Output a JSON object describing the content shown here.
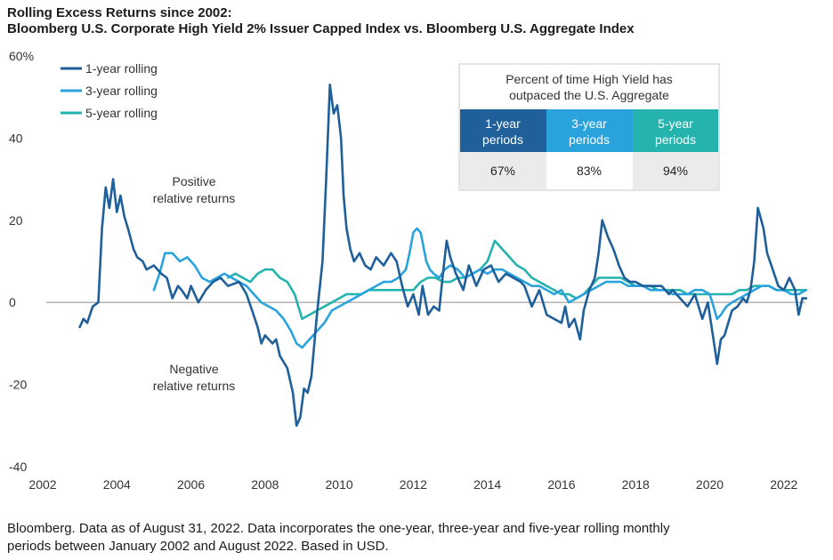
{
  "header": {
    "title_line1": "Rolling Excess Returns since 2002:",
    "title_line2": "Bloomberg U.S. Corporate High Yield 2% Issuer Capped Index vs. Bloomberg U.S. Aggregate Index"
  },
  "footnote": {
    "line1": "Bloomberg. Data as of August 31, 2022. Data incorporates the one-year, three-year and five-year rolling monthly",
    "line2": "periods between January 2002 and August 2022. Based in USD."
  },
  "annotations": {
    "positive_line1": "Positive",
    "positive_line2": "relative returns",
    "negative_line1": "Negative",
    "negative_line2": "relative returns"
  },
  "summary_table": {
    "heading_line1": "Percent of time High Yield has",
    "heading_line2": "outpaced the U.S. Aggregate",
    "columns": [
      {
        "line1": "1-year",
        "line2": "periods",
        "value": "67%",
        "color": "#1f5f9a"
      },
      {
        "line1": "3-year",
        "line2": "periods",
        "value": "83%",
        "color": "#2aa3dd"
      },
      {
        "line1": "5-year",
        "line2": "periods",
        "value": "94%",
        "color": "#24b3ad"
      }
    ]
  },
  "chart_data": {
    "type": "line",
    "title": "",
    "xlabel": "",
    "ylabel": "",
    "xlim": [
      2002,
      2022.75
    ],
    "ylim": [
      -40,
      60
    ],
    "x_ticks": [
      2002,
      2004,
      2006,
      2008,
      2010,
      2012,
      2014,
      2016,
      2018,
      2020,
      2022
    ],
    "y_ticks": [
      -40,
      -20,
      0,
      20,
      40,
      60
    ],
    "y_tick_labels": [
      "-40",
      "-20",
      "0",
      "20",
      "40",
      "60%"
    ],
    "legend_position": "top-left",
    "zero_line": true,
    "grid": false,
    "series": [
      {
        "name": "1-year rolling",
        "color": "#1f5f9a",
        "x": [
          2003.0,
          2003.1,
          2003.2,
          2003.35,
          2003.5,
          2003.6,
          2003.7,
          2003.8,
          2003.9,
          2004.0,
          2004.1,
          2004.2,
          2004.3,
          2004.45,
          2004.55,
          2004.7,
          2004.8,
          2005.0,
          2005.2,
          2005.35,
          2005.5,
          2005.65,
          2005.75,
          2005.9,
          2006.0,
          2006.2,
          2006.4,
          2006.6,
          2006.8,
          2007.0,
          2007.3,
          2007.5,
          2007.65,
          2007.8,
          2007.9,
          2008.0,
          2008.2,
          2008.3,
          2008.4,
          2008.6,
          2008.75,
          2008.85,
          2008.95,
          2009.05,
          2009.15,
          2009.25,
          2009.4,
          2009.55,
          2009.65,
          2009.75,
          2009.85,
          2009.95,
          2010.05,
          2010.12,
          2010.2,
          2010.3,
          2010.4,
          2010.55,
          2010.7,
          2010.85,
          2011.0,
          2011.2,
          2011.4,
          2011.55,
          2011.7,
          2011.85,
          2012.0,
          2012.15,
          2012.25,
          2012.4,
          2012.55,
          2012.7,
          2012.8,
          2012.9,
          2013.0,
          2013.15,
          2013.35,
          2013.5,
          2013.7,
          2013.9,
          2014.1,
          2014.3,
          2014.5,
          2014.7,
          2014.9,
          2015.0,
          2015.2,
          2015.4,
          2015.6,
          2015.8,
          2016.0,
          2016.1,
          2016.2,
          2016.35,
          2016.5,
          2016.6,
          2016.75,
          2016.9,
          2017.0,
          2017.1,
          2017.25,
          2017.4,
          2017.55,
          2017.7,
          2017.85,
          2018.0,
          2018.2,
          2018.45,
          2018.7,
          2018.9,
          2019.0,
          2019.2,
          2019.4,
          2019.6,
          2019.8,
          2019.95,
          2020.1,
          2020.2,
          2020.3,
          2020.4,
          2020.5,
          2020.6,
          2020.75,
          2020.9,
          2021.0,
          2021.1,
          2021.2,
          2021.3,
          2021.45,
          2021.55,
          2021.7,
          2021.85,
          2022.0,
          2022.15,
          2022.3,
          2022.4,
          2022.5,
          2022.6
        ],
        "values": [
          -6,
          -4,
          -5,
          -1,
          0,
          18,
          28,
          23,
          30,
          22,
          26,
          21,
          18,
          13,
          11,
          10,
          8,
          9,
          7,
          6,
          1,
          4,
          3,
          1,
          4,
          0,
          3,
          5,
          6,
          4,
          5,
          2,
          -2,
          -6,
          -10,
          -8,
          -10,
          -9,
          -13,
          -16,
          -22,
          -30,
          -28,
          -21,
          -22,
          -18,
          -3,
          10,
          30,
          53,
          46,
          48,
          40,
          26,
          18,
          13,
          10,
          12,
          9,
          8,
          11,
          9,
          12,
          10,
          4,
          -1,
          2,
          -3,
          4,
          -3,
          -1,
          -2,
          7,
          15,
          11,
          7,
          3,
          9,
          4,
          8,
          9,
          5,
          7,
          6,
          5,
          4,
          -1,
          3,
          -3,
          -4,
          -5,
          -1,
          -6,
          -4,
          -9,
          -2,
          3,
          6,
          12,
          20,
          16,
          13,
          9,
          6,
          5,
          5,
          4,
          4,
          4,
          2,
          3,
          1,
          -1,
          2,
          -4,
          0,
          -9,
          -15,
          -9,
          -8,
          -5,
          -2,
          -1,
          1,
          0,
          3,
          10,
          23,
          18,
          12,
          8,
          4,
          3,
          6,
          3,
          -3,
          1,
          1
        ]
      },
      {
        "name": "3-year rolling",
        "color": "#2aa3dd",
        "x": [
          2005.0,
          2005.15,
          2005.3,
          2005.5,
          2005.7,
          2005.9,
          2006.1,
          2006.3,
          2006.5,
          2006.7,
          2006.9,
          2007.1,
          2007.3,
          2007.5,
          2007.7,
          2007.9,
          2008.1,
          2008.3,
          2008.5,
          2008.7,
          2008.85,
          2009.0,
          2009.2,
          2009.4,
          2009.6,
          2009.8,
          2010.0,
          2010.2,
          2010.4,
          2010.6,
          2010.8,
          2011.0,
          2011.2,
          2011.4,
          2011.6,
          2011.8,
          2011.9,
          2012.0,
          2012.1,
          2012.2,
          2012.35,
          2012.45,
          2012.55,
          2012.7,
          2012.85,
          2013.0,
          2013.2,
          2013.4,
          2013.6,
          2013.8,
          2014.0,
          2014.2,
          2014.4,
          2014.6,
          2014.8,
          2015.0,
          2015.2,
          2015.4,
          2015.6,
          2015.8,
          2016.0,
          2016.2,
          2016.4,
          2016.6,
          2016.8,
          2017.0,
          2017.2,
          2017.4,
          2017.6,
          2017.8,
          2018.0,
          2018.2,
          2018.4,
          2018.6,
          2018.8,
          2019.0,
          2019.2,
          2019.4,
          2019.6,
          2019.8,
          2020.0,
          2020.1,
          2020.2,
          2020.3,
          2020.45,
          2020.6,
          2020.8,
          2021.0,
          2021.2,
          2021.4,
          2021.6,
          2021.8,
          2022.0,
          2022.2,
          2022.4,
          2022.6
        ],
        "values": [
          3,
          7,
          12,
          12,
          10,
          11,
          9,
          6,
          5,
          6,
          7,
          6,
          5,
          4,
          2,
          0,
          -1,
          -2,
          -4,
          -7,
          -10,
          -11,
          -9,
          -7,
          -5,
          -2,
          -1,
          0,
          1,
          2,
          3,
          4,
          5,
          5,
          6,
          8,
          12,
          17,
          18,
          17,
          10,
          8,
          7,
          6,
          8,
          9,
          8,
          6,
          7,
          8,
          7,
          8,
          8,
          7,
          6,
          5,
          4,
          4,
          3,
          2,
          3,
          0,
          1,
          2,
          3,
          4,
          5,
          5,
          5,
          4,
          4,
          4,
          3,
          3,
          3,
          2,
          2,
          2,
          3,
          3,
          2,
          -1,
          -4,
          -3,
          -1,
          0,
          1,
          2,
          3,
          4,
          4,
          3,
          3,
          2,
          2,
          3
        ]
      },
      {
        "name": "5-year rolling",
        "color": "#24b3ad",
        "x": [
          2007.0,
          2007.2,
          2007.4,
          2007.6,
          2007.8,
          2008.0,
          2008.2,
          2008.4,
          2008.6,
          2008.8,
          2009.0,
          2009.2,
          2009.4,
          2009.6,
          2009.8,
          2010.0,
          2010.2,
          2010.4,
          2010.6,
          2010.8,
          2011.0,
          2011.2,
          2011.4,
          2011.6,
          2011.8,
          2012.0,
          2012.2,
          2012.4,
          2012.6,
          2012.8,
          2013.0,
          2013.2,
          2013.4,
          2013.6,
          2013.8,
          2014.0,
          2014.2,
          2014.4,
          2014.6,
          2014.8,
          2015.0,
          2015.2,
          2015.4,
          2015.6,
          2015.8,
          2016.0,
          2016.2,
          2016.4,
          2016.6,
          2016.8,
          2017.0,
          2017.2,
          2017.4,
          2017.6,
          2017.8,
          2018.0,
          2018.2,
          2018.4,
          2018.6,
          2018.8,
          2019.0,
          2019.2,
          2019.4,
          2019.6,
          2019.8,
          2020.0,
          2020.2,
          2020.4,
          2020.6,
          2020.8,
          2021.0,
          2021.2,
          2021.4,
          2021.6,
          2021.8,
          2022.0,
          2022.2,
          2022.4,
          2022.6
        ],
        "values": [
          6,
          7,
          6,
          5,
          7,
          8,
          8,
          6,
          5,
          2,
          -4,
          -3,
          -2,
          -1,
          0,
          1,
          2,
          2,
          2,
          3,
          3,
          3,
          3,
          3,
          3,
          3,
          5,
          6,
          6,
          5,
          5,
          6,
          6,
          7,
          8,
          10,
          15,
          13,
          11,
          9,
          8,
          6,
          5,
          4,
          3,
          2,
          2,
          1,
          2,
          4,
          6,
          6,
          6,
          6,
          5,
          4,
          4,
          4,
          3,
          3,
          3,
          3,
          2,
          2,
          2,
          2,
          2,
          2,
          2,
          3,
          3,
          4,
          4,
          4,
          3,
          3,
          3,
          3,
          3
        ]
      }
    ]
  }
}
